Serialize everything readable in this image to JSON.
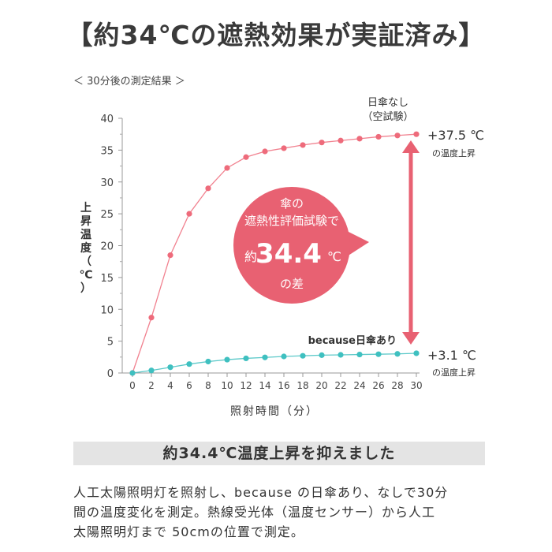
{
  "title": "【約34℃の遮熱効果が実証済み】",
  "subtitle": "＜ 30分後の測定結果 ＞",
  "chart_data": {
    "type": "line",
    "x": [
      0,
      2,
      4,
      6,
      8,
      10,
      12,
      14,
      16,
      18,
      20,
      22,
      24,
      26,
      28,
      30
    ],
    "xticks": [
      "0",
      "2",
      "4",
      "6",
      "8",
      "10",
      "12",
      "14",
      "16",
      "18",
      "20",
      "22",
      "24",
      "26",
      "28",
      "30"
    ],
    "yticks": [
      "0",
      "5",
      "10",
      "15",
      "20",
      "25",
      "30",
      "35",
      "40"
    ],
    "xlabel": "照射時間（分）",
    "ylabel": [
      "上",
      "昇",
      "温",
      "度",
      "（",
      "℃",
      "）"
    ],
    "xlim": [
      0,
      30
    ],
    "ylim": [
      0,
      40
    ],
    "grid": false,
    "series": [
      {
        "name": "日傘なし（空試験）",
        "label_line1": "日傘なし",
        "label_line2": "（空試験）",
        "color": "#ee6b7b",
        "values": [
          0,
          8.7,
          18.5,
          25,
          29,
          32.2,
          33.9,
          34.8,
          35.3,
          35.8,
          36.2,
          36.5,
          36.8,
          37.1,
          37.3,
          37.5
        ]
      },
      {
        "name": "because日傘あり",
        "label_line1": "because日傘あり",
        "color": "#3fc0c0",
        "values": [
          0,
          0.4,
          0.9,
          1.4,
          1.8,
          2.1,
          2.3,
          2.45,
          2.6,
          2.7,
          2.8,
          2.85,
          2.9,
          2.95,
          3.0,
          3.1
        ]
      }
    ],
    "annotations": {
      "top_value": "+37.5 ℃",
      "top_sub": "の温度上昇",
      "bottom_value": "+3.1 ℃",
      "bottom_sub": "の温度上昇",
      "bubble_line1": "傘の",
      "bubble_line2": "遮熱性評価試験で",
      "bubble_prefix": "約",
      "bubble_number": "34.4",
      "bubble_unit": "℃",
      "bubble_line4": "の差",
      "bubble_color": "#e86172",
      "arrow_color": "#e86172"
    }
  },
  "band_text": "約34.4℃温度上昇を抑えました",
  "description": [
    "人工太陽照明灯を照射し、because の日傘あり、なしで30分",
    "間の温度変化を測定。熱線受光体（温度センサー）から人工",
    "太陽照明灯まで 50cmの位置で測定。"
  ]
}
